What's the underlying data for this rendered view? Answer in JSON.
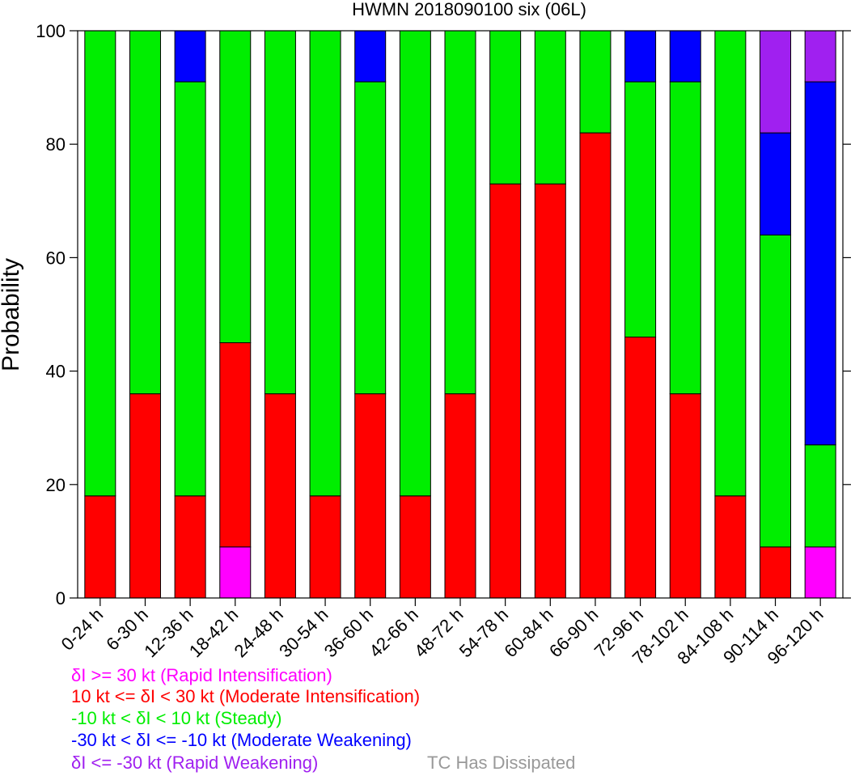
{
  "chart_data": {
    "type": "bar",
    "stacked": true,
    "title": "HWMN 2018090100 six (06L)",
    "xlabel": "",
    "ylabel": "Probability",
    "ylim": [
      0,
      100
    ],
    "yticks": [
      "0",
      "20",
      "40",
      "60",
      "80",
      "100"
    ],
    "grid": false,
    "categories": [
      "0-24 h",
      "6-30 h",
      "12-36 h",
      "18-42 h",
      "24-48 h",
      "30-54 h",
      "36-60 h",
      "42-66 h",
      "48-72 h",
      "54-78 h",
      "60-84 h",
      "66-90 h",
      "72-96 h",
      "78-102 h",
      "84-108 h",
      "90-114 h",
      "96-120 h"
    ],
    "series": [
      {
        "key": "ri",
        "color": "#ff00ff",
        "values": [
          0,
          0,
          0,
          9,
          0,
          0,
          0,
          0,
          0,
          0,
          0,
          0,
          0,
          0,
          0,
          0,
          9
        ]
      },
      {
        "key": "mi",
        "color": "#ff0000",
        "values": [
          18,
          36,
          18,
          36,
          36,
          18,
          36,
          18,
          36,
          73,
          73,
          82,
          46,
          36,
          18,
          9,
          0
        ]
      },
      {
        "key": "steady",
        "color": "#00ee00",
        "values": [
          82,
          64,
          73,
          55,
          64,
          82,
          55,
          82,
          64,
          27,
          27,
          18,
          45,
          55,
          82,
          55,
          18
        ]
      },
      {
        "key": "mw",
        "color": "#0000ff",
        "values": [
          0,
          0,
          9,
          0,
          0,
          0,
          9,
          0,
          0,
          0,
          0,
          0,
          9,
          9,
          0,
          18,
          64
        ]
      },
      {
        "key": "rw",
        "color": "#a020f0",
        "values": [
          0,
          0,
          0,
          0,
          0,
          0,
          0,
          0,
          0,
          0,
          0,
          0,
          0,
          0,
          0,
          18,
          9
        ]
      }
    ]
  },
  "legend": {
    "entries": [
      {
        "text": "δI >= 30 kt (Rapid Intensification)",
        "color": "#ff00ff"
      },
      {
        "text": "10 kt <= δI < 30 kt (Moderate Intensification)",
        "color": "#ff0000"
      },
      {
        "text": "-10 kt < δI < 10 kt (Steady)",
        "color": "#00ee00"
      },
      {
        "text": "-30 kt < δI <= -10 kt (Moderate Weakening)",
        "color": "#0000ff"
      },
      {
        "text": "δI <= -30 kt (Rapid Weakening)",
        "color": "#a020f0"
      }
    ],
    "dissipated": {
      "text": "TC Has Dissipated",
      "color": "#999999"
    }
  }
}
